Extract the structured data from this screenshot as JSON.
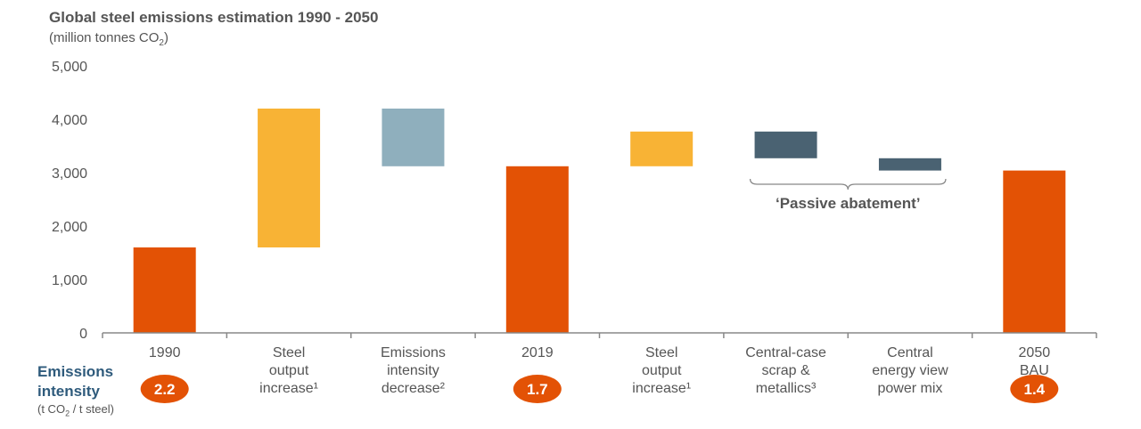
{
  "chart_data": {
    "type": "waterfall",
    "title": "Global steel emissions estimation 1990 - 2050",
    "subtitle": "(million tonnes CO",
    "subtitle_sub": "2",
    "subtitle_end": ")",
    "ylim": [
      0,
      5000
    ],
    "yticks": [
      "0",
      "1,000",
      "2,000",
      "3,000",
      "4,000",
      "5,000"
    ],
    "ytick_values": [
      0,
      1000,
      2000,
      3000,
      4000,
      5000
    ],
    "categories": [
      {
        "lines": [
          "1990"
        ]
      },
      {
        "lines": [
          "Steel",
          "output",
          "increase¹"
        ]
      },
      {
        "lines": [
          "Emissions",
          "intensity",
          "decrease²"
        ]
      },
      {
        "lines": [
          "2019"
        ]
      },
      {
        "lines": [
          "Steel",
          "output",
          "increase¹"
        ]
      },
      {
        "lines": [
          "Central-case",
          "scrap &",
          "metallics³"
        ]
      },
      {
        "lines": [
          "Central",
          "energy view",
          "power mix"
        ]
      },
      {
        "lines": [
          "2050",
          "BAU"
        ]
      }
    ],
    "bars": [
      {
        "start": 0,
        "end": 1600,
        "color": "#e35205"
      },
      {
        "start": 1600,
        "end": 4200,
        "color": "#f8b335"
      },
      {
        "start": 4200,
        "end": 3120,
        "color": "#8fafbd"
      },
      {
        "start": 0,
        "end": 3120,
        "color": "#e35205"
      },
      {
        "start": 3120,
        "end": 3770,
        "color": "#f8b335"
      },
      {
        "start": 3770,
        "end": 3270,
        "color": "#4a6272"
      },
      {
        "start": 3270,
        "end": 3040,
        "color": "#4a6272"
      },
      {
        "start": 0,
        "end": 3040,
        "color": "#e35205"
      }
    ],
    "annotation": {
      "text": "‘Passive abatement’",
      "from_index": 5,
      "to_index": 6
    },
    "emissions_intensity": {
      "label_line1": "Emissions",
      "label_line2": "intensity",
      "units_pre": "(t CO",
      "units_sub": "2",
      "units_post": " / t steel)",
      "badges": [
        {
          "index": 0,
          "value": "2.2"
        },
        {
          "index": 3,
          "value": "1.7"
        },
        {
          "index": 7,
          "value": "1.4"
        }
      ],
      "badge_color": "#e35205"
    }
  }
}
